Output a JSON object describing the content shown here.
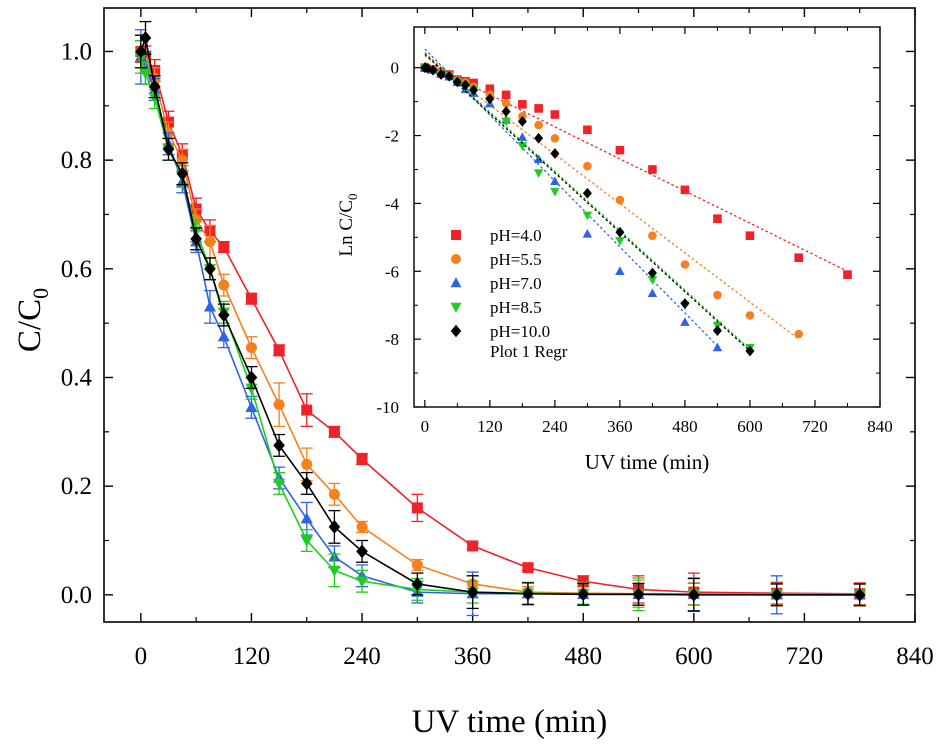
{
  "colors": {
    "ph40": "#ee2229",
    "ph55": "#f7801e",
    "ph70": "#2f63e0",
    "ph85": "#20cc20",
    "ph100": "#000000"
  },
  "chart_data": [
    {
      "type": "line",
      "ylabel": "C/C",
      "ylabel_sub": "0",
      "xlabel": "UV time (min)",
      "xlim": [
        -40,
        840
      ],
      "ylim": [
        -0.05,
        1.08
      ],
      "xticks": [
        0,
        120,
        240,
        360,
        480,
        600,
        720,
        840
      ],
      "yticks": [
        0.0,
        0.2,
        0.4,
        0.6,
        0.8,
        1.0
      ],
      "ytick_labels": [
        "0.0",
        "0.2",
        "0.4",
        "0.6",
        "0.8",
        "1.0"
      ],
      "series": [
        {
          "key": "ph40",
          "marker": "square",
          "x": [
            0,
            5,
            15,
            30,
            45,
            60,
            75,
            90,
            120,
            150,
            180,
            210,
            240,
            300,
            360,
            420,
            480,
            540,
            600,
            690,
            780
          ],
          "y": [
            1.0,
            0.99,
            0.965,
            0.87,
            0.81,
            0.71,
            0.67,
            0.64,
            0.545,
            0.45,
            0.34,
            0.3,
            0.25,
            0.16,
            0.09,
            0.05,
            0.025,
            0.01,
            0.005,
            0.003,
            0.002
          ],
          "err": [
            0.02,
            0.02,
            0.02,
            0.02,
            0.02,
            0.02,
            0.02,
            0.01,
            0.01,
            0.01,
            0.03,
            0.01,
            0.01,
            0.025,
            0.005,
            0.005,
            0.01,
            0.025,
            0.035,
            0.02,
            0.02
          ]
        },
        {
          "key": "ph55",
          "marker": "circle",
          "x": [
            0,
            5,
            15,
            30,
            45,
            60,
            75,
            90,
            120,
            150,
            180,
            210,
            240,
            300,
            360,
            420,
            480,
            540,
            600,
            690,
            780
          ],
          "y": [
            1.0,
            0.98,
            0.95,
            0.85,
            0.8,
            0.69,
            0.65,
            0.57,
            0.455,
            0.35,
            0.24,
            0.185,
            0.125,
            0.055,
            0.02,
            0.005,
            0.003,
            0.002,
            0.002,
            0.001,
            0.001
          ],
          "err": [
            0.03,
            0.02,
            0.02,
            0.02,
            0.02,
            0.02,
            0.03,
            0.02,
            0.02,
            0.04,
            0.03,
            0.02,
            0.01,
            0.01,
            0.015,
            0.01,
            0.02,
            0.025,
            0.02,
            0.02,
            0.02
          ]
        },
        {
          "key": "ph70",
          "marker": "triangle-up",
          "x": [
            0,
            5,
            15,
            30,
            45,
            60,
            75,
            90,
            120,
            150,
            180,
            210,
            240,
            300,
            360,
            420,
            480,
            540,
            600,
            690,
            780
          ],
          "y": [
            0.99,
            0.97,
            0.93,
            0.83,
            0.76,
            0.65,
            0.53,
            0.475,
            0.345,
            0.215,
            0.14,
            0.07,
            0.035,
            0.005,
            0.002,
            0.002,
            0.001,
            0.001,
            0.001,
            0.0,
            0.0
          ],
          "err": [
            0.05,
            0.03,
            0.02,
            0.02,
            0.02,
            0.02,
            0.03,
            0.02,
            0.02,
            0.02,
            0.03,
            0.02,
            0.02,
            0.02,
            0.04,
            0.02,
            0.02,
            0.02,
            0.03,
            0.035,
            0.02
          ]
        },
        {
          "key": "ph85",
          "marker": "triangle-down",
          "x": [
            0,
            5,
            15,
            30,
            45,
            60,
            75,
            90,
            120,
            150,
            180,
            210,
            240,
            300,
            360,
            420,
            480,
            540,
            600,
            690,
            780
          ],
          "y": [
            0.99,
            0.96,
            0.915,
            0.82,
            0.77,
            0.67,
            0.6,
            0.52,
            0.38,
            0.205,
            0.1,
            0.045,
            0.025,
            0.01,
            0.005,
            0.003,
            0.002,
            0.001,
            0.001,
            0.0,
            0.0
          ],
          "err": [
            0.03,
            0.02,
            0.02,
            0.02,
            0.02,
            0.02,
            0.02,
            0.02,
            0.02,
            0.02,
            0.02,
            0.03,
            0.02,
            0.02,
            0.02,
            0.02,
            0.02,
            0.03,
            0.02,
            0.02,
            0.02
          ]
        },
        {
          "key": "ph100",
          "marker": "diamond",
          "x": [
            0,
            5,
            15,
            30,
            45,
            60,
            75,
            90,
            120,
            150,
            180,
            210,
            240,
            300,
            360,
            420,
            480,
            540,
            600,
            690,
            780
          ],
          "y": [
            1.0,
            1.025,
            0.935,
            0.82,
            0.775,
            0.655,
            0.6,
            0.515,
            0.4,
            0.275,
            0.205,
            0.125,
            0.08,
            0.02,
            0.005,
            0.002,
            0.001,
            0.001,
            0.0,
            0.0,
            0.0
          ],
          "err": [
            0.03,
            0.03,
            0.02,
            0.02,
            0.02,
            0.02,
            0.02,
            0.02,
            0.02,
            0.02,
            0.02,
            0.03,
            0.02,
            0.02,
            0.03,
            0.02,
            0.02,
            0.02,
            0.03,
            0.02,
            0.02
          ]
        }
      ]
    },
    {
      "type": "scatter",
      "ylabel": "Ln C/C",
      "ylabel_sub": "0",
      "xlabel": "UV time (min)",
      "xlim": [
        -20,
        840
      ],
      "ylim": [
        -10,
        1.2
      ],
      "xticks": [
        0,
        120,
        240,
        360,
        480,
        600,
        720,
        840
      ],
      "yticks": [
        0,
        -2,
        -4,
        -6,
        -8,
        -10
      ],
      "legend_position": "left",
      "legend_extra": "Plot 1 Regr",
      "series": [
        {
          "key": "ph40",
          "name": "pH=4.0",
          "marker": "square",
          "x": [
            0,
            15,
            30,
            45,
            60,
            75,
            90,
            120,
            150,
            180,
            210,
            240,
            300,
            360,
            420,
            480,
            540,
            600,
            690,
            780
          ],
          "y": [
            0,
            -0.05,
            -0.15,
            -0.2,
            -0.35,
            -0.4,
            -0.45,
            -0.62,
            -0.8,
            -1.08,
            -1.2,
            -1.38,
            -1.83,
            -2.43,
            -3.0,
            -3.6,
            -4.45,
            -4.95,
            -5.6,
            -6.1
          ],
          "fit": {
            "x": [
              0,
              780
            ],
            "y": [
              0.15,
              -6.0
            ]
          }
        },
        {
          "key": "ph55",
          "name": "pH=5.5",
          "marker": "circle",
          "x": [
            0,
            15,
            30,
            45,
            60,
            75,
            90,
            120,
            150,
            180,
            210,
            240,
            300,
            360,
            420,
            480,
            540,
            600,
            690
          ],
          "y": [
            0,
            -0.05,
            -0.16,
            -0.22,
            -0.37,
            -0.43,
            -0.56,
            -0.79,
            -1.05,
            -1.43,
            -1.69,
            -2.08,
            -2.9,
            -3.9,
            -4.95,
            -5.8,
            -6.7,
            -7.3,
            -7.85
          ],
          "fit": {
            "x": [
              0,
              690
            ],
            "y": [
              0.35,
              -8.0
            ]
          }
        },
        {
          "key": "ph70",
          "name": "pH=7.0",
          "marker": "triangle-up",
          "x": [
            0,
            15,
            30,
            45,
            60,
            75,
            90,
            120,
            150,
            180,
            210,
            240,
            300,
            360,
            420,
            480,
            540
          ],
          "y": [
            0,
            -0.07,
            -0.19,
            -0.27,
            -0.43,
            -0.64,
            -0.75,
            -1.06,
            -1.54,
            -2.05,
            -2.7,
            -3.35,
            -4.9,
            -6.0,
            -6.65,
            -7.5,
            -8.25
          ],
          "fit": {
            "x": [
              0,
              540
            ],
            "y": [
              0.55,
              -8.2
            ]
          }
        },
        {
          "key": "ph85",
          "name": "pH=8.5",
          "marker": "triangle-down",
          "x": [
            0,
            15,
            30,
            45,
            60,
            75,
            90,
            120,
            150,
            180,
            210,
            240,
            300,
            360,
            420,
            480,
            540,
            600
          ],
          "y": [
            0,
            -0.09,
            -0.2,
            -0.26,
            -0.4,
            -0.51,
            -0.65,
            -0.97,
            -1.58,
            -2.3,
            -3.1,
            -3.65,
            -4.35,
            -5.1,
            -6.25,
            -7.0,
            -7.6,
            -8.25
          ],
          "fit": {
            "x": [
              0,
              600
            ],
            "y": [
              0.45,
              -8.3
            ]
          }
        },
        {
          "key": "ph100",
          "name": "pH=10.0",
          "marker": "diamond",
          "x": [
            0,
            5,
            15,
            30,
            45,
            60,
            75,
            90,
            120,
            150,
            180,
            210,
            240,
            300,
            360,
            420,
            480,
            540,
            600
          ],
          "y": [
            0,
            -0.02,
            -0.07,
            -0.2,
            -0.25,
            -0.42,
            -0.51,
            -0.66,
            -0.92,
            -1.29,
            -1.58,
            -2.08,
            -2.53,
            -3.7,
            -4.85,
            -6.05,
            -6.95,
            -7.75,
            -8.35
          ],
          "fit": {
            "x": [
              0,
              600
            ],
            "y": [
              0.4,
              -8.35
            ]
          }
        }
      ]
    }
  ]
}
